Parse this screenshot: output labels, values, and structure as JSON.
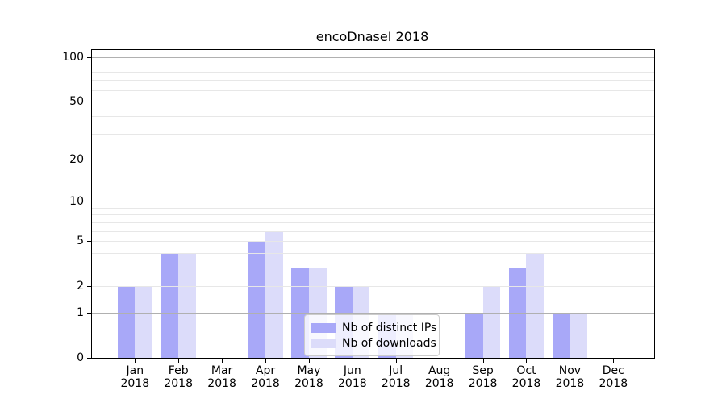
{
  "chart_data": {
    "type": "bar",
    "title": "encoDnaseI 2018",
    "year": "2018",
    "months": [
      "Jan",
      "Feb",
      "Mar",
      "Apr",
      "May",
      "Jun",
      "Jul",
      "Aug",
      "Sep",
      "Oct",
      "Nov",
      "Dec"
    ],
    "categories": [
      "Jan 2018",
      "Feb 2018",
      "Mar 2018",
      "Apr 2018",
      "May 2018",
      "Jun 2018",
      "Jul 2018",
      "Aug 2018",
      "Sep 2018",
      "Oct 2018",
      "Nov 2018",
      "Dec 2018"
    ],
    "series": [
      {
        "name": "Nb of distinct IPs",
        "color": "#a8a8f8",
        "values": [
          2,
          4,
          0,
          5,
          3,
          2,
          1,
          0,
          1,
          3,
          1,
          0
        ]
      },
      {
        "name": "Nb of downloads",
        "color": "#dcdcfa",
        "values": [
          2,
          4,
          0,
          6,
          3,
          2,
          1,
          0,
          2,
          4,
          1,
          0
        ]
      }
    ],
    "xlabel": "",
    "ylabel": "",
    "y_scale": "log10(1+v)",
    "ylim": [
      0,
      112
    ],
    "y_ticks": [
      0,
      1,
      2,
      5,
      10,
      20,
      50,
      100
    ],
    "y_major_gridlines": [
      1,
      10,
      100
    ],
    "y_minor_gridlines": [
      2,
      3,
      4,
      5,
      6,
      7,
      8,
      9,
      20,
      30,
      40,
      50,
      60,
      70,
      80,
      90
    ],
    "grid": "horizontal, drawn above bars",
    "legend_position": "lower center",
    "colors": {
      "major_grid": "#b0b0b0",
      "minor_grid": "#e7e7e7",
      "spine": "#000000",
      "text": "#000000",
      "legend_border": "#cccccc"
    }
  }
}
